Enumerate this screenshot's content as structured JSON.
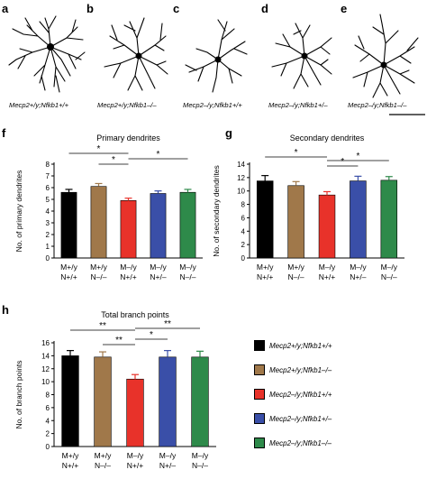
{
  "panel_labels": [
    "a",
    "b",
    "c",
    "d",
    "e",
    "f",
    "g",
    "h"
  ],
  "genotype_captions": [
    "Mecp2+/y;Nfkb1+/+",
    "Mecp2+/y;Nfkb1–/–",
    "Mecp2–/y;Nfkb1+/+",
    "Mecp2–/y;Nfkb1+/–",
    "Mecp2–/y;Nfkb1–/–"
  ],
  "colors": [
    "#000000",
    "#a0784a",
    "#e8322a",
    "#3a4fa8",
    "#2e8a4a"
  ],
  "legend": [
    "Mecp2+/y;Nfkb1+/+",
    "Mecp2+/y;Nfkb1–/–",
    "Mecp2–/y;Nfkb1+/+",
    "Mecp2–/y;Nfkb1+/–",
    "Mecp2–/y;Nfkb1–/–"
  ],
  "chart_data": [
    {
      "type": "bar",
      "title": "Primary dendrites",
      "ylabel": "No. of primary dendrites",
      "categories": [
        "M+/y\nN+/+",
        "M+/y\nN–/–",
        "M–/y\nN+/+",
        "M–/y\nN+/–",
        "M–/y\nN–/–"
      ],
      "values": [
        5.6,
        6.1,
        4.9,
        5.5,
        5.6
      ],
      "errors": [
        0.25,
        0.25,
        0.2,
        0.22,
        0.25
      ],
      "ylim": [
        0,
        8
      ],
      "yticks": [
        "0",
        "1",
        "2",
        "3",
        "4",
        "5",
        "6",
        "7",
        "8"
      ],
      "significance": [
        {
          "from": 0,
          "to": 2,
          "label": "*"
        },
        {
          "from": 1,
          "to": 2,
          "label": "*"
        },
        {
          "from": 2,
          "to": 4,
          "label": "*"
        }
      ]
    },
    {
      "type": "bar",
      "title": "Secondary dendrites",
      "ylabel": "No. of secondary dendrites",
      "categories": [
        "M+/y\nN+/+",
        "M+/y\nN–/–",
        "M–/y\nN+/+",
        "M–/y\nN+/–",
        "M–/y\nN–/–"
      ],
      "values": [
        11.5,
        10.8,
        9.4,
        11.5,
        11.6
      ],
      "errors": [
        0.8,
        0.6,
        0.5,
        0.7,
        0.55
      ],
      "ylim": [
        0,
        14
      ],
      "yticks": [
        "0",
        "2",
        "4",
        "6",
        "8",
        "10",
        "12",
        "14"
      ],
      "significance": [
        {
          "from": 0,
          "to": 2,
          "label": "*"
        },
        {
          "from": 2,
          "to": 3,
          "label": "*"
        },
        {
          "from": 2,
          "to": 4,
          "label": "*"
        }
      ]
    },
    {
      "type": "bar",
      "title": "Total branch points",
      "ylabel": "No. of branch points",
      "categories": [
        "M+/y\nN+/+",
        "M+/y\nN–/–",
        "M–/y\nN+/+",
        "M–/y\nN+/–",
        "M–/y\nN–/–"
      ],
      "values": [
        14.0,
        13.8,
        10.4,
        13.8,
        13.8
      ],
      "errors": [
        0.8,
        0.8,
        0.7,
        1.0,
        0.9
      ],
      "ylim": [
        0,
        16
      ],
      "yticks": [
        "0",
        "2",
        "4",
        "6",
        "8",
        "10",
        "12",
        "14",
        "16"
      ],
      "significance": [
        {
          "from": 0,
          "to": 2,
          "label": "**"
        },
        {
          "from": 1,
          "to": 2,
          "label": "**"
        },
        {
          "from": 2,
          "to": 3,
          "label": "*"
        },
        {
          "from": 2,
          "to": 4,
          "label": "**"
        }
      ]
    }
  ]
}
